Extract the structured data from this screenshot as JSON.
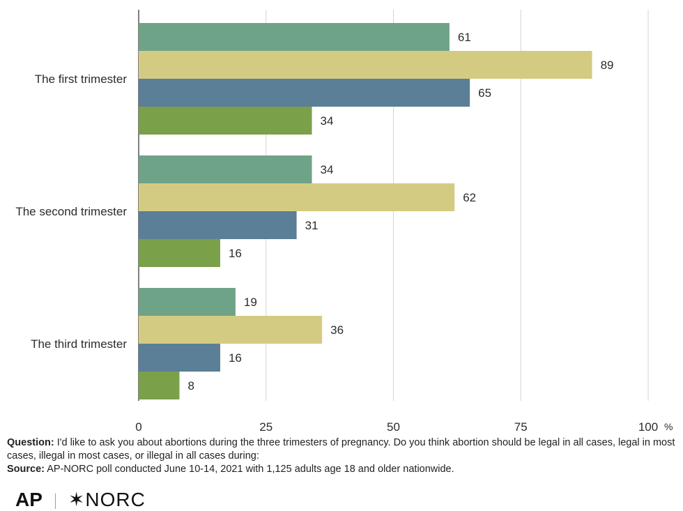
{
  "chart_data": {
    "type": "bar",
    "orientation": "horizontal",
    "categories": [
      "The first trimester",
      "The second trimester",
      "The third trimester"
    ],
    "series": [
      {
        "values": [
          61,
          34,
          19
        ],
        "color": "#6ea388"
      },
      {
        "values": [
          89,
          62,
          36
        ],
        "color": "#d4cb82"
      },
      {
        "values": [
          65,
          31,
          16
        ],
        "color": "#5a7f96"
      },
      {
        "values": [
          34,
          16,
          8
        ],
        "color": "#7ba04a"
      }
    ],
    "xticks": [
      0,
      25,
      50,
      75,
      100
    ],
    "xtick_labels": [
      "0",
      "25",
      "50",
      "75",
      "100"
    ],
    "xunit": "%",
    "xlim": [
      0,
      100
    ],
    "grid": true
  },
  "footnote": {
    "question_label": "Question:",
    "question_text": " I'd like to ask you about abortions during the three trimesters of pregnancy. Do you think abortion should be legal in all cases, legal in most cases, illegal in most cases, or illegal in all cases during:",
    "source_label": "Source:",
    "source_text": " AP-NORC poll conducted June 10-14, 2021 with 1,125 adults age 18 and older nationwide."
  },
  "logos": {
    "ap": "AP",
    "norc": "✶NORC"
  }
}
